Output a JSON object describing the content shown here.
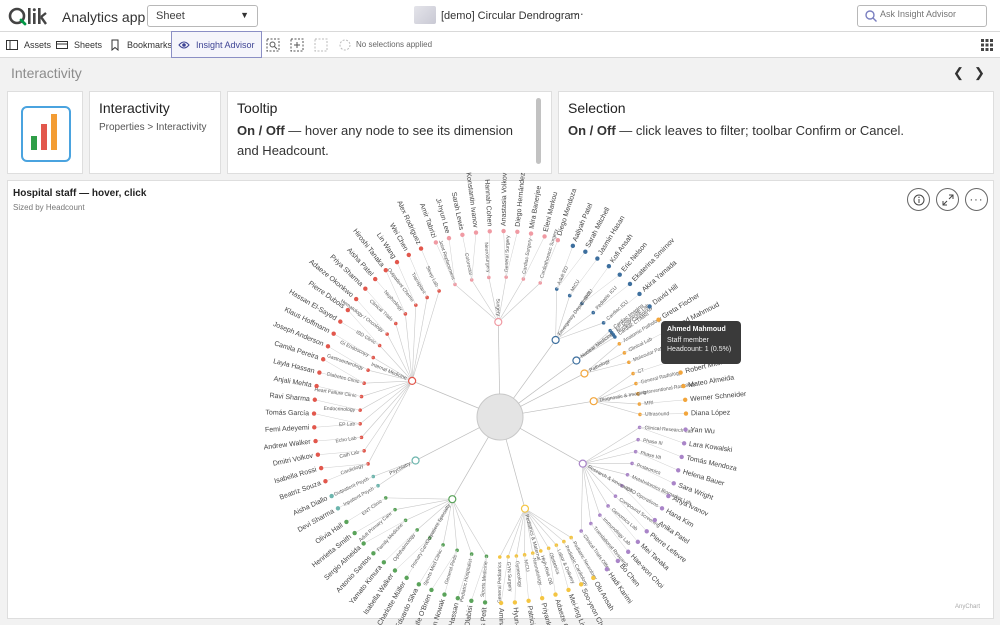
{
  "app": {
    "name": "Analytics app"
  },
  "sheet_select": {
    "value": "Sheet"
  },
  "doc": {
    "title": "[demo] Circular Dendrogram"
  },
  "search": {
    "placeholder": "Ask Insight Advisor"
  },
  "toolbar": {
    "assets": "Assets",
    "sheets": "Sheets",
    "bookmarks": "Bookmarks",
    "insight_advisor": "Insight Advisor",
    "no_selections": "No selections applied"
  },
  "sheet": {
    "title": "Interactivity"
  },
  "cards": {
    "interactivity": {
      "title": "Interactivity",
      "path": "Properties > Interactivity"
    },
    "tooltip": {
      "title": "Tooltip",
      "on_off": "On / Off",
      "text": " — hover any node to see its dimension and Headcount."
    },
    "selection": {
      "title": "Selection",
      "on_off": "On / Off",
      "text": " — click leaves to filter; toolbar Confirm or Cancel."
    }
  },
  "chart": {
    "title": "Hospital staff — hover, click",
    "subtitle": "Sized by Headcount",
    "credit": "AnyChart",
    "colors": {
      "pink": "#f09aa3",
      "blue": "#3d6f9e",
      "orange": "#f2a53b",
      "purple": "#a984c8",
      "yellow": "#f4c542",
      "green": "#5aa35a",
      "teal": "#6cb5ad",
      "red": "#e2574c"
    },
    "tooltip": {
      "name": "Ahmed Mahmoud",
      "role": "Staff member",
      "value": "Headcount: 1 (0.5%)"
    }
  },
  "chart_data": {
    "type": "dendrogram",
    "title": "Hospital staff — hover, click",
    "subtitle": "Sized by Headcount",
    "groups": [
      {
        "name": "Surgery",
        "color": "#f09aa3",
        "subgroups": [
          "Joint Replacement",
          "Colorectal",
          "Neurosurgery",
          "General Surgery",
          "Cardiac Surgery",
          "Cardiothoracic Surgery"
        ],
        "leaves": [
          "Amir Tabrizi",
          "Ji-hyun Lee",
          "Sarah Lewis",
          "Konstantin Ivanov",
          "Hannah Cohen",
          "Anastasia Volkov",
          "Diego Hernández",
          "Mira Banerjee",
          "Eleni Markou",
          "Diego Mendoza"
        ]
      },
      {
        "name": "Emergency Department",
        "color": "#3d6f9e",
        "subgroups": [
          "Adult ED",
          "MICU",
          "SICU",
          "Pediatric ICU",
          "Cardiac ICU"
        ],
        "leaves": [
          "Aaliyah Patel",
          "Sarah Mitchell",
          "Jasmin Hasan",
          "Kofi Ansah",
          "Eric Nelson",
          "Ekaterina Smirnov",
          "Akira Yamada"
        ]
      },
      {
        "name": "Nuclear Medicine",
        "color": "#3d6f9e",
        "subgroups": [
          "Cardiac Imaging",
          "EP Diagnostic Lab",
          "Nuclear Cardiology",
          "Cardiac CT/MRI"
        ],
        "leaves": [
          "David Hill"
        ]
      },
      {
        "name": "Pathology",
        "color": "#f2a53b",
        "subgroups": [
          "Anatomic Pathology",
          "Clinical Lab",
          "Molecular Pathology"
        ],
        "leaves": [
          "Greta Fischer",
          "Ahmed Mahmoud",
          "Kira Schmidt"
        ]
      },
      {
        "name": "Diagnostic & Imaging",
        "color": "#f2a53b",
        "subgroups": [
          "CT",
          "General Radiology",
          "Interventional Radiology",
          "MRI",
          "Ultrasound"
        ],
        "leaves": [
          "Lucas Romano",
          "Robert Mitchell",
          "Mateo Almeida",
          "Werner Schneider",
          "Diana López"
        ]
      },
      {
        "name": "Research & Innovation",
        "color": "#a984c8",
        "subgroups": [
          "Clinical Research Lab",
          "Phase III",
          "Phase I/II",
          "Proteomics",
          "Metabolomics Biomarker Lab",
          "CTO Operations",
          "Compound Screening",
          "Genomics Lab",
          "Immunology Lab",
          "Translational Research",
          "Clinical Trials Office"
        ],
        "leaves": [
          "Yan Wu",
          "Lara Kowalski",
          "Tomás Mendoza",
          "Helena Bauer",
          "Sara Wright",
          "Anya Ivanov",
          "Hana Kim",
          "Anika Patel",
          "Pierre Lefevre",
          "Mei Tanaka",
          "Hae-won Choi",
          "Bo Chen",
          "Hadi Karimi"
        ]
      },
      {
        "name": "Pediatrics & Maternal",
        "color": "#f4c542",
        "subgroups": [
          "Pediatric Neurology",
          "Pediatric Cardiology",
          "Labor & Delivery",
          "Obstetrics",
          "High-Risk OB",
          "Neonatology",
          "NICU",
          "Gynecology",
          "GYN Surgery",
          "General Pediatrics"
        ],
        "leaves": [
          "Olu Ansah",
          "Soo-yeon Choi",
          "Mei-ling Lin",
          "Adaeze Okeke",
          "Priyanka Joshi",
          "Patricia Russo",
          "Hyun-jin Kang",
          "Aminata Diallo"
        ]
      },
      {
        "name": "Outpatient Specialty",
        "color": "#5aa35a",
        "subgroups": [
          "Sports Medicine",
          "Pediatric Hospitalist",
          "General Peds",
          "Sports Med Clinic",
          "Primary Care",
          "Ophthalmology",
          "Family Medicine",
          "Adult Primary Care",
          "ENT Clinic"
        ],
        "leaves": [
          "Nicolas Petit",
          "Ade Olabisi",
          "Yara Hassan",
          "Ivan Nowak",
          "Aoife O'Brien",
          "Eduardo Silva",
          "Charlotte Müller",
          "Isabella Walker",
          "Yamato Kimura",
          "Antonio Santos",
          "Sergio Almeida",
          "Henrietta Smith",
          "Olivia Hall"
        ]
      },
      {
        "name": "Psychiatry",
        "color": "#6cb5ad",
        "subgroups": [
          "Inpatient Psych",
          "Outpatient Psych"
        ],
        "leaves": [
          "Devi Sharma",
          "Aisha Diallo"
        ]
      },
      {
        "name": "Internal Medicine",
        "color": "#e2574c",
        "subgroups": [
          "Cardiology",
          "Cath Lab",
          "Echo Lab",
          "EP Lab",
          "Endocrinology",
          "Heart Failure Clinic",
          "Diabetes Clinic",
          "Gastroenterology",
          "GI Endoscopy",
          "IBD Clinic",
          "Hematology / Oncology",
          "Clinical Trials",
          "Nephrology",
          "Outpatient Chemo",
          "Transplant",
          "Sleep Lab"
        ],
        "leaves": [
          "Beatriz Souza",
          "Isabella Rossi",
          "Dmitri Volkov",
          "Andrew Walker",
          "Femi Adeyemi",
          "Tomás García",
          "Ravi Sharma",
          "Anjali Mehta",
          "Layla Hassan",
          "Camila Pereira",
          "Joseph Anderson",
          "Klaus Hoffmann",
          "Hassan El-Sayed",
          "Pierre Dubois",
          "Adaeze Okonkwo",
          "Priya Sharma",
          "Aisha Patel",
          "Hiroshi Tanaka",
          "Lin Wang",
          "Wei Chen",
          "Alex Rodriguez"
        ]
      }
    ]
  }
}
